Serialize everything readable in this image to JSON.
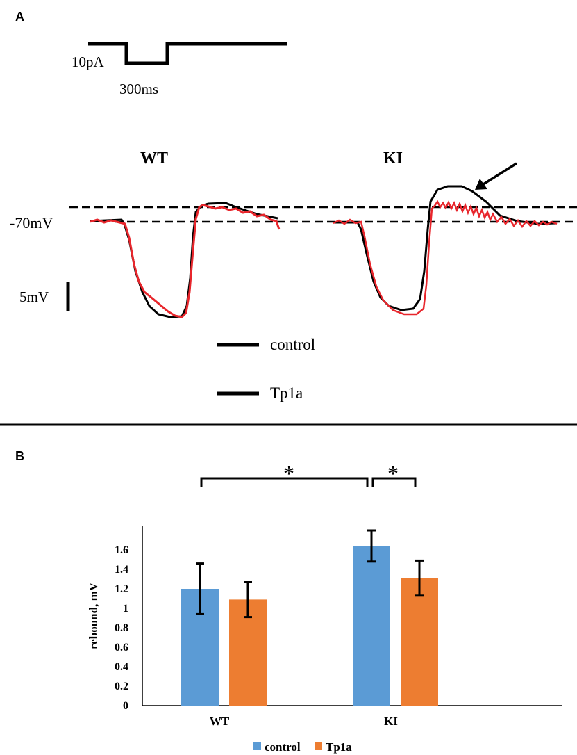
{
  "panel_a": {
    "label": "A",
    "stimulus": {
      "amplitude_label": "10pA",
      "duration_label": "300ms"
    },
    "groups": [
      "WT",
      "KI"
    ],
    "baseline_label": "-70mV",
    "scale_label": "5mV",
    "legend": [
      {
        "name": "control",
        "color": "#000000"
      },
      {
        "name": "Tp1a",
        "color": "#000000"
      }
    ],
    "trace_colors": {
      "control": "#000000",
      "Tp1a": "#e8262c"
    }
  },
  "panel_b": {
    "label": "B"
  },
  "chart_data": {
    "type": "bar",
    "categories": [
      "WT",
      "KI"
    ],
    "series": [
      {
        "name": "control",
        "values": [
          1.2,
          1.64
        ],
        "errors": [
          0.26,
          0.16
        ],
        "color": "#5b9bd5"
      },
      {
        "name": "Tp1a",
        "values": [
          1.09,
          1.31
        ],
        "errors": [
          0.18,
          0.18
        ],
        "color": "#ed7d31"
      }
    ],
    "ylabel": "rebound, mV",
    "ylim": [
      0,
      1.8
    ],
    "yticks": [
      "0",
      "0.2",
      "0.4",
      "0.6",
      "0.8",
      "1",
      "1.2",
      "1.4",
      "1.6"
    ],
    "significance": [
      {
        "between": "WT control – KI control",
        "label": "*"
      },
      {
        "between": "KI control – KI Tp1a",
        "label": "*"
      }
    ],
    "legend_position": "bottom"
  }
}
